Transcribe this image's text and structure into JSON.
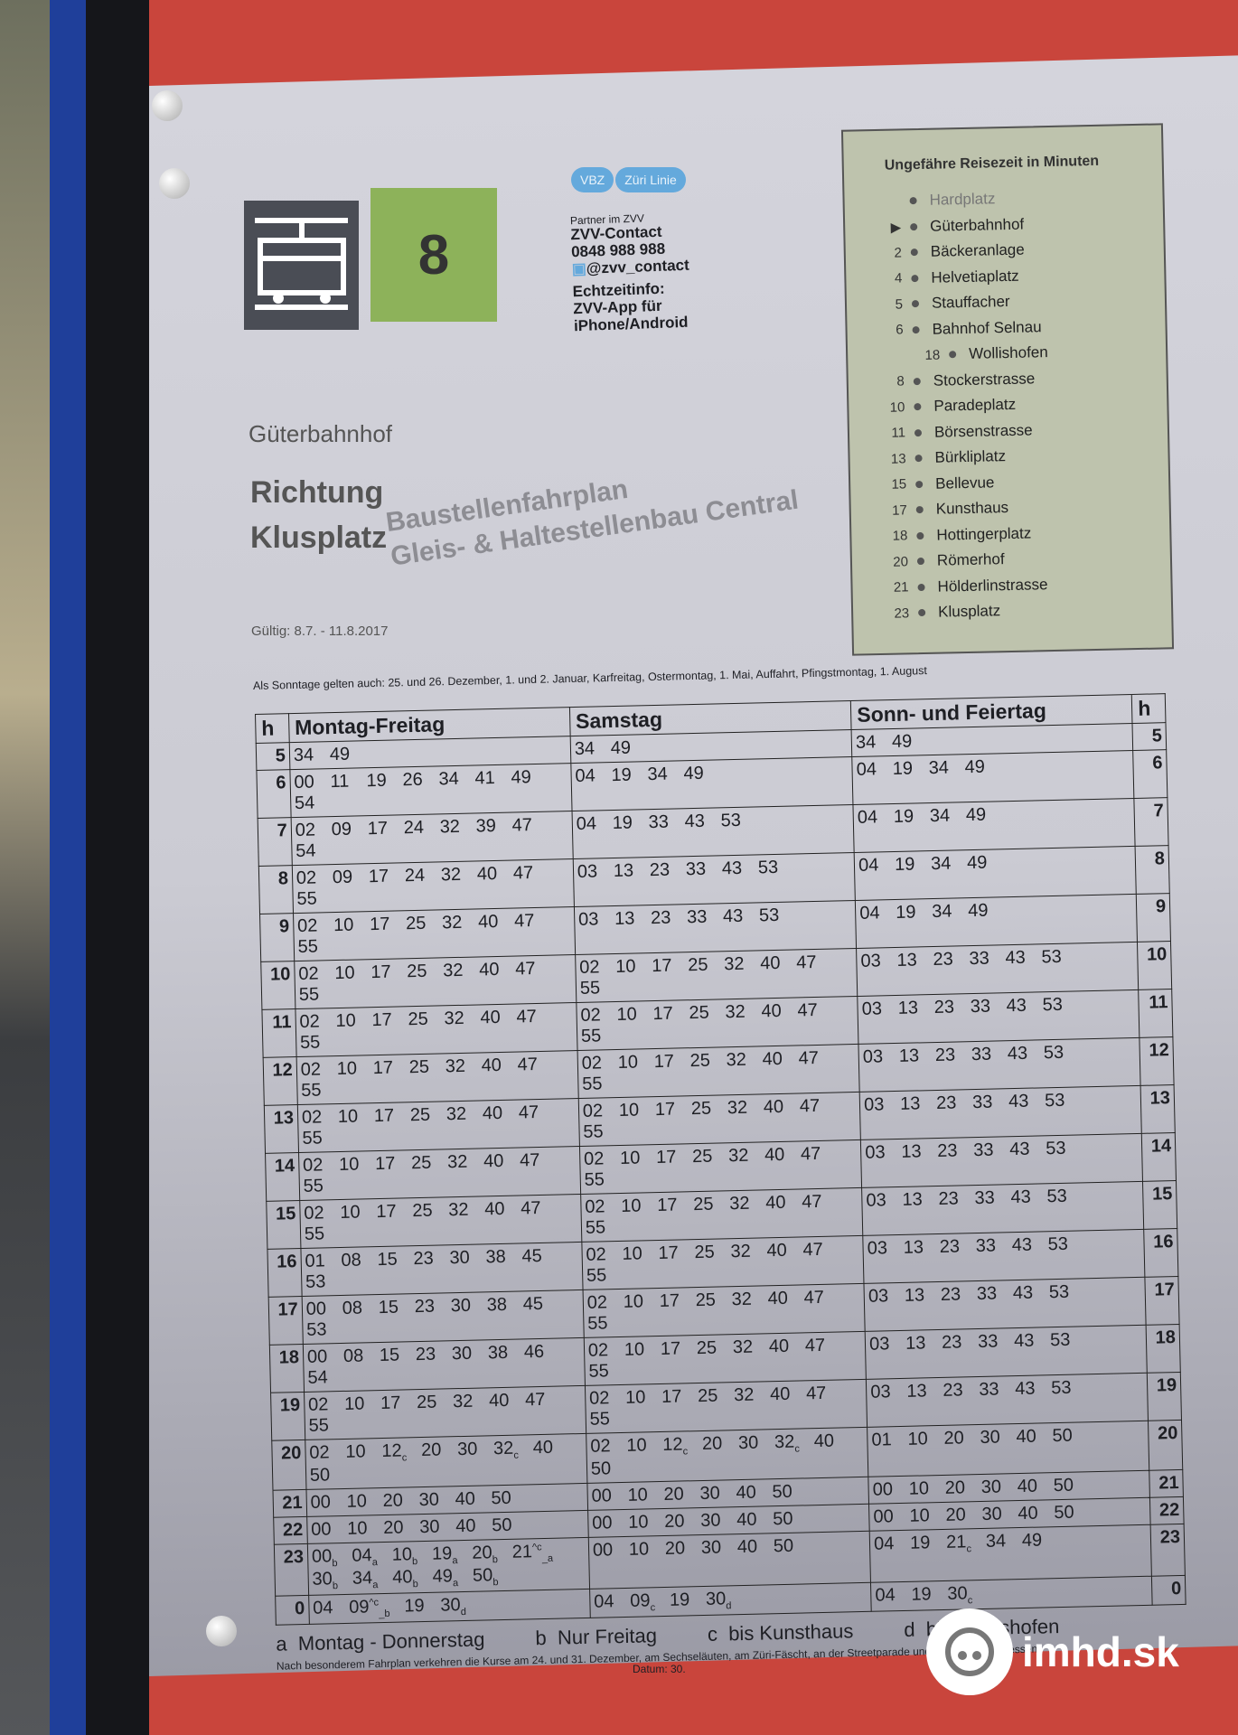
{
  "header": {
    "line": "8",
    "operator_badge": [
      "VBZ",
      "Züri Linie"
    ],
    "contact": {
      "partner": "Partner im ZVV",
      "name": "ZVV-Contact",
      "phone": "0848 988 988",
      "twitter": "@zvv_contact",
      "realtime": [
        "Echtzeitinfo:",
        "ZVV-App für",
        "iPhone/Android"
      ]
    },
    "stop": "Güterbahnhof",
    "direction_label": "Richtung",
    "direction": "Klusplatz",
    "validity": "Gültig: 8.7. - 11.8.2017"
  },
  "route": {
    "title": "Ungefähre Reisezeit in Minuten",
    "stops": [
      {
        "min": "",
        "name": "Hardplatz"
      },
      {
        "min": "▶",
        "name": "Güterbahnhof"
      },
      {
        "min": "2",
        "name": "Bäckeranlage"
      },
      {
        "min": "4",
        "name": "Helvetiaplatz"
      },
      {
        "min": "5",
        "name": "Stauffacher"
      },
      {
        "min": "6",
        "name": "Bahnhof Selnau"
      },
      {
        "min": "18",
        "name": "Wollishofen"
      },
      {
        "min": "8",
        "name": "Stockerstrasse"
      },
      {
        "min": "10",
        "name": "Paradeplatz"
      },
      {
        "min": "11",
        "name": "Börsenstrasse"
      },
      {
        "min": "13",
        "name": "Bürkliplatz"
      },
      {
        "min": "15",
        "name": "Bellevue"
      },
      {
        "min": "17",
        "name": "Kunsthaus"
      },
      {
        "min": "18",
        "name": "Hottingerplatz"
      },
      {
        "min": "20",
        "name": "Römerhof"
      },
      {
        "min": "21",
        "name": "Hölderlinstrasse"
      },
      {
        "min": "23",
        "name": "Klusplatz"
      }
    ]
  },
  "notice": "Als Sonntage gelten auch: 25. und 26. Dezember, 1. und 2. Januar, Karfreitag, Ostermontag, 1. Mai, Auffahrt, Pfingstmontag, 1. August",
  "timetable": {
    "columns": [
      "h",
      "Montag-Freitag",
      "Samstag",
      "Sonn- und Feiertag",
      "h"
    ],
    "rows": [
      {
        "h": "5",
        "mf": [
          "34",
          "49"
        ],
        "sa": [
          "34",
          "49"
        ],
        "so": [
          "34",
          "49"
        ]
      },
      {
        "h": "6",
        "mf": [
          "00",
          "11",
          "19",
          "26",
          "34",
          "41",
          "49",
          "54"
        ],
        "sa": [
          "04",
          "19",
          "34",
          "49"
        ],
        "so": [
          "04",
          "19",
          "34",
          "49"
        ]
      },
      {
        "h": "7",
        "mf": [
          "02",
          "09",
          "17",
          "24",
          "32",
          "39",
          "47",
          "54"
        ],
        "sa": [
          "04",
          "19",
          "33",
          "43",
          "53"
        ],
        "so": [
          "04",
          "19",
          "34",
          "49"
        ]
      },
      {
        "h": "8",
        "mf": [
          "02",
          "09",
          "17",
          "24",
          "32",
          "40",
          "47",
          "55"
        ],
        "sa": [
          "03",
          "13",
          "23",
          "33",
          "43",
          "53"
        ],
        "so": [
          "04",
          "19",
          "34",
          "49"
        ]
      },
      {
        "h": "9",
        "mf": [
          "02",
          "10",
          "17",
          "25",
          "32",
          "40",
          "47",
          "55"
        ],
        "sa": [
          "03",
          "13",
          "23",
          "33",
          "43",
          "53"
        ],
        "so": [
          "04",
          "19",
          "34",
          "49"
        ]
      },
      {
        "h": "10",
        "mf": [
          "02",
          "10",
          "17",
          "25",
          "32",
          "40",
          "47",
          "55"
        ],
        "sa": [
          "02",
          "10",
          "17",
          "25",
          "32",
          "40",
          "47",
          "55"
        ],
        "so": [
          "03",
          "13",
          "23",
          "33",
          "43",
          "53"
        ]
      },
      {
        "h": "11",
        "mf": [
          "02",
          "10",
          "17",
          "25",
          "32",
          "40",
          "47",
          "55"
        ],
        "sa": [
          "02",
          "10",
          "17",
          "25",
          "32",
          "40",
          "47",
          "55"
        ],
        "so": [
          "03",
          "13",
          "23",
          "33",
          "43",
          "53"
        ]
      },
      {
        "h": "12",
        "mf": [
          "02",
          "10",
          "17",
          "25",
          "32",
          "40",
          "47",
          "55"
        ],
        "sa": [
          "02",
          "10",
          "17",
          "25",
          "32",
          "40",
          "47",
          "55"
        ],
        "so": [
          "03",
          "13",
          "23",
          "33",
          "43",
          "53"
        ]
      },
      {
        "h": "13",
        "mf": [
          "02",
          "10",
          "17",
          "25",
          "32",
          "40",
          "47",
          "55"
        ],
        "sa": [
          "02",
          "10",
          "17",
          "25",
          "32",
          "40",
          "47",
          "55"
        ],
        "so": [
          "03",
          "13",
          "23",
          "33",
          "43",
          "53"
        ]
      },
      {
        "h": "14",
        "mf": [
          "02",
          "10",
          "17",
          "25",
          "32",
          "40",
          "47",
          "55"
        ],
        "sa": [
          "02",
          "10",
          "17",
          "25",
          "32",
          "40",
          "47",
          "55"
        ],
        "so": [
          "03",
          "13",
          "23",
          "33",
          "43",
          "53"
        ]
      },
      {
        "h": "15",
        "mf": [
          "02",
          "10",
          "17",
          "25",
          "32",
          "40",
          "47",
          "55"
        ],
        "sa": [
          "02",
          "10",
          "17",
          "25",
          "32",
          "40",
          "47",
          "55"
        ],
        "so": [
          "03",
          "13",
          "23",
          "33",
          "43",
          "53"
        ]
      },
      {
        "h": "16",
        "mf": [
          "01",
          "08",
          "15",
          "23",
          "30",
          "38",
          "45",
          "53"
        ],
        "sa": [
          "02",
          "10",
          "17",
          "25",
          "32",
          "40",
          "47",
          "55"
        ],
        "so": [
          "03",
          "13",
          "23",
          "33",
          "43",
          "53"
        ]
      },
      {
        "h": "17",
        "mf": [
          "00",
          "08",
          "15",
          "23",
          "30",
          "38",
          "45",
          "53"
        ],
        "sa": [
          "02",
          "10",
          "17",
          "25",
          "32",
          "40",
          "47",
          "55"
        ],
        "so": [
          "03",
          "13",
          "23",
          "33",
          "43",
          "53"
        ]
      },
      {
        "h": "18",
        "mf": [
          "00",
          "08",
          "15",
          "23",
          "30",
          "38",
          "46",
          "54"
        ],
        "sa": [
          "02",
          "10",
          "17",
          "25",
          "32",
          "40",
          "47",
          "55"
        ],
        "so": [
          "03",
          "13",
          "23",
          "33",
          "43",
          "53"
        ]
      },
      {
        "h": "19",
        "mf": [
          "02",
          "10",
          "17",
          "25",
          "32",
          "40",
          "47",
          "55"
        ],
        "sa": [
          "02",
          "10",
          "17",
          "25",
          "32",
          "40",
          "47",
          "55"
        ],
        "so": [
          "03",
          "13",
          "23",
          "33",
          "43",
          "53"
        ]
      },
      {
        "h": "20",
        "mf": [
          "02",
          "10",
          "12_c",
          "20",
          "30",
          "32_c",
          "40",
          "50"
        ],
        "sa": [
          "02",
          "10",
          "12_c",
          "20",
          "30",
          "32_c",
          "40",
          "50"
        ],
        "so": [
          "01",
          "10",
          "20",
          "30",
          "40",
          "50"
        ]
      },
      {
        "h": "21",
        "mf": [
          "00",
          "10",
          "20",
          "30",
          "40",
          "50"
        ],
        "sa": [
          "00",
          "10",
          "20",
          "30",
          "40",
          "50"
        ],
        "so": [
          "00",
          "10",
          "20",
          "30",
          "40",
          "50"
        ]
      },
      {
        "h": "22",
        "mf": [
          "00",
          "10",
          "20",
          "30",
          "40",
          "50"
        ],
        "sa": [
          "00",
          "10",
          "20",
          "30",
          "40",
          "50"
        ],
        "so": [
          "00",
          "10",
          "20",
          "30",
          "40",
          "50"
        ]
      },
      {
        "h": "23",
        "mf": [
          "00_b",
          "04_a",
          "10_b",
          "19_a",
          "20_b",
          "21^c_a",
          "30_b",
          "34_a",
          "40_b",
          "49_a",
          "50_b"
        ],
        "sa": [
          "00",
          "10",
          "20",
          "30",
          "40",
          "50"
        ],
        "so": [
          "04",
          "19",
          "21_c",
          "34",
          "49"
        ]
      },
      {
        "h": "0",
        "mf": [
          "04",
          "09^c_b",
          "19",
          "30_d"
        ],
        "sa": [
          "04",
          "09_c",
          "19",
          "30_d"
        ],
        "so": [
          "04",
          "19",
          "30_c"
        ]
      }
    ]
  },
  "legend": [
    {
      "key": "a",
      "text": "Montag - Donnerstag"
    },
    {
      "key": "b",
      "text": "Nur Freitag"
    },
    {
      "key": "c",
      "text": "bis Kunsthaus"
    },
    {
      "key": "d",
      "text": "bis Wollishofen"
    }
  ],
  "legend_note": "Nach besonderem Fahrplan verkehren die Kurse am 24. und 31. Dezember, am Sechseläuten, am Züri-Fäscht, an der Streetparade und am Knabenschiessen.",
  "datum": "Datum: 30.",
  "watermark": [
    "Baustellenfahrplan",
    "Gleis- & Haltestellenbau Central"
  ],
  "site_logo": "imhd.sk",
  "colors": {
    "line_badge": "#8db25a",
    "board_red": "#c9453c",
    "route_box": "#bec3ad",
    "pole_blue": "#1f3f9a"
  }
}
